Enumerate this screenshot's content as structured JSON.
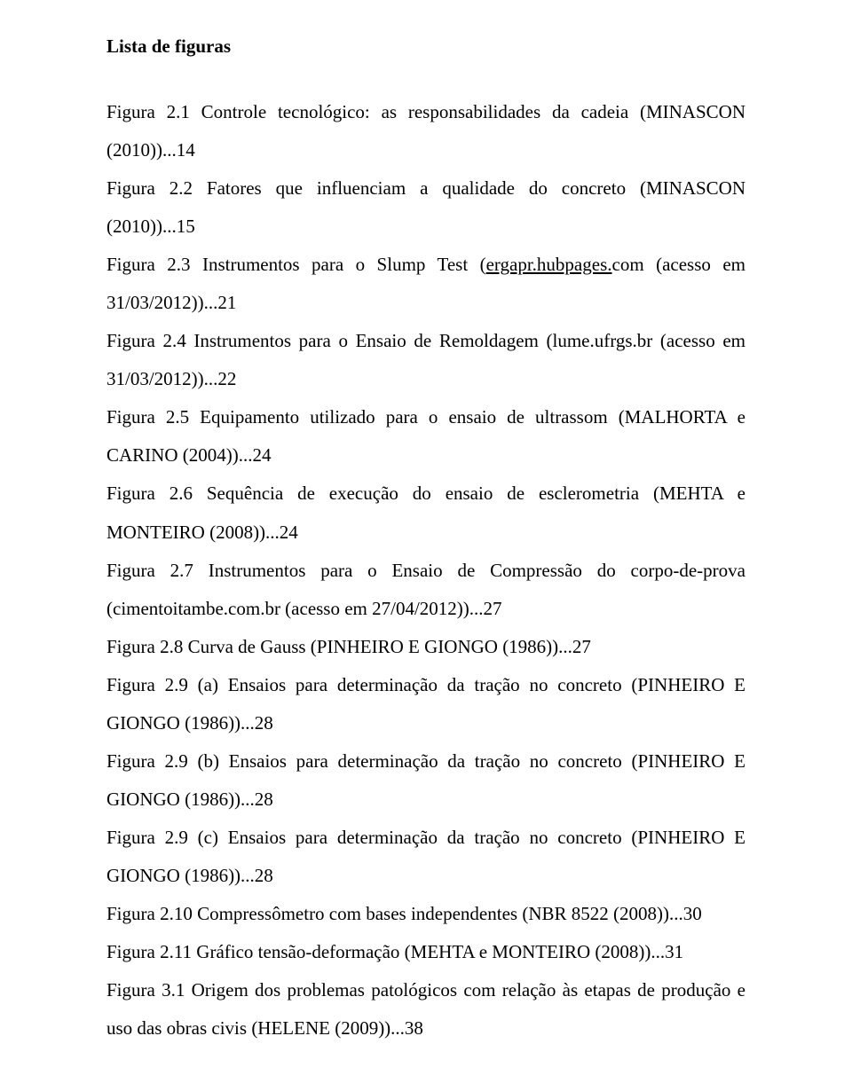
{
  "title": "Lista de figuras",
  "entries": [
    {
      "text": "Figura 2.1 Controle tecnológico: as responsabilidades da cadeia (MINASCON (2010))...14"
    },
    {
      "text": "Figura 2.2 Fatores que influenciam a qualidade do concreto (MINASCON (2010))...15"
    },
    {
      "prefix": "Figura 2.3 Instrumentos para o Slump Test (",
      "underlined": "ergapr.hubpages.",
      "suffix": "com (acesso em 31/03/2012))...21",
      "justify": true
    },
    {
      "text": "Figura 2.4 Instrumentos para o Ensaio de Remoldagem (lume.ufrgs.br (acesso em 31/03/2012))...22",
      "justify": true
    },
    {
      "text": "Figura 2.5 Equipamento utilizado para o ensaio de ultrassom (MALHORTA e CARINO (2004))...24",
      "justify": true
    },
    {
      "text": "Figura 2.6 Sequência de execução do ensaio de esclerometria (MEHTA e MONTEIRO (2008))...24",
      "justify": true
    },
    {
      "text": "Figura 2.7 Instrumentos para o Ensaio de Compressão do corpo-de-prova (cimentoitambe.com.br (acesso em 27/04/2012))...27",
      "justify": true
    },
    {
      "text": "Figura 2.8 Curva de Gauss (PINHEIRO E GIONGO (1986))...27"
    },
    {
      "text": "Figura 2.9 (a) Ensaios para determinação da tração no concreto (PINHEIRO E GIONGO (1986))...28",
      "justify": true
    },
    {
      "text": "Figura 2.9 (b) Ensaios para determinação da tração no concreto (PINHEIRO E GIONGO (1986))...28",
      "justify": true
    },
    {
      "text": "Figura 2.9 (c) Ensaios para determinação da tração no concreto (PINHEIRO E GIONGO (1986))...28",
      "justify": true
    },
    {
      "text": "Figura 2.10 Compressômetro com bases independentes (NBR 8522 (2008))...30"
    },
    {
      "text": "Figura 2.11 Gráfico tensão-deformação (MEHTA e MONTEIRO (2008))...31"
    },
    {
      "text": "Figura 3.1 Origem dos problemas patológicos com relação às etapas de produção e uso das obras civis (HELENE (2009))...38",
      "justify": true
    }
  ]
}
